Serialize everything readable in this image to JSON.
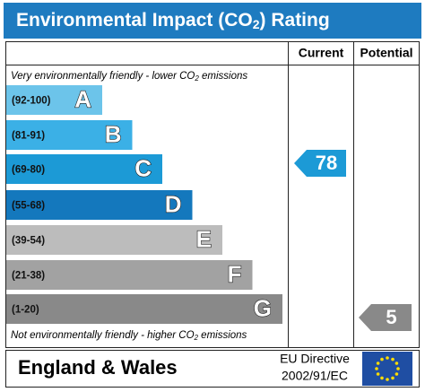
{
  "header": {
    "title": [
      "Environmental Impact (CO",
      "2",
      ") Rating"
    ]
  },
  "columns": {
    "current": "Current",
    "potential": "Potential"
  },
  "top_note": [
    "Very environmentally friendly - lower CO",
    "2",
    " emissions"
  ],
  "bottom_note": [
    "Not environmentally friendly - higher CO",
    "2",
    " emissions"
  ],
  "bands": [
    {
      "range": "(92-100)",
      "letter": "A",
      "color": "#6cc4ea"
    },
    {
      "range": "(81-91)",
      "letter": "B",
      "color": "#3bb0e6"
    },
    {
      "range": "(69-80)",
      "letter": "C",
      "color": "#1c9ad6"
    },
    {
      "range": "(55-68)",
      "letter": "D",
      "color": "#1478bd"
    },
    {
      "range": "(39-54)",
      "letter": "E",
      "color": "#bcbcbc"
    },
    {
      "range": "(21-38)",
      "letter": "F",
      "color": "#a2a2a2"
    },
    {
      "range": "(1-20)",
      "letter": "G",
      "color": "#898989"
    }
  ],
  "ratings": {
    "current": {
      "value": "78",
      "color": "#1c9ad6"
    },
    "potential": {
      "value": "5",
      "color": "#898989"
    }
  },
  "footer": {
    "region": "England & Wales",
    "directive": [
      "EU Directive",
      "2002/91/EC"
    ]
  }
}
